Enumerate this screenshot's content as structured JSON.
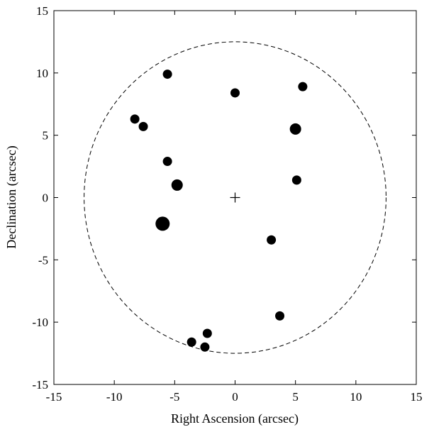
{
  "chart_data": {
    "type": "scatter",
    "title": "",
    "xlabel": "Right Ascension (arcsec)",
    "ylabel": "Declination (arcsec)",
    "xlim": [
      -15,
      15
    ],
    "ylim": [
      -15,
      15
    ],
    "xticks": [
      -15,
      -10,
      -5,
      0,
      5,
      10,
      15
    ],
    "yticks": [
      -15,
      -10,
      -5,
      0,
      5,
      10,
      15
    ],
    "grid": false,
    "legend": "none",
    "series": [
      {
        "marker": "filled-circle",
        "color": "#000000",
        "points": [
          {
            "x": -5.6,
            "y": 9.9,
            "size": "medium"
          },
          {
            "x": 0.0,
            "y": 8.4,
            "size": "medium"
          },
          {
            "x": 5.6,
            "y": 8.9,
            "size": "medium"
          },
          {
            "x": -8.3,
            "y": 6.3,
            "size": "medium"
          },
          {
            "x": -7.6,
            "y": 5.7,
            "size": "medium"
          },
          {
            "x": 5.0,
            "y": 5.5,
            "size": "large"
          },
          {
            "x": -5.6,
            "y": 2.9,
            "size": "medium"
          },
          {
            "x": 5.1,
            "y": 1.4,
            "size": "medium"
          },
          {
            "x": -4.8,
            "y": 1.0,
            "size": "large"
          },
          {
            "x": -6.0,
            "y": -2.1,
            "size": "xlarge"
          },
          {
            "x": 3.0,
            "y": -3.4,
            "size": "medium"
          },
          {
            "x": 3.7,
            "y": -9.5,
            "size": "medium"
          },
          {
            "x": -2.3,
            "y": -10.9,
            "size": "medium"
          },
          {
            "x": -3.6,
            "y": -11.6,
            "size": "medium"
          },
          {
            "x": -2.5,
            "y": -12.0,
            "size": "medium"
          }
        ]
      }
    ],
    "annotations": [
      {
        "type": "center-cross",
        "x": 0,
        "y": 0
      },
      {
        "type": "dashed-circle",
        "cx": 0,
        "cy": 0,
        "r": 12.5
      }
    ]
  }
}
